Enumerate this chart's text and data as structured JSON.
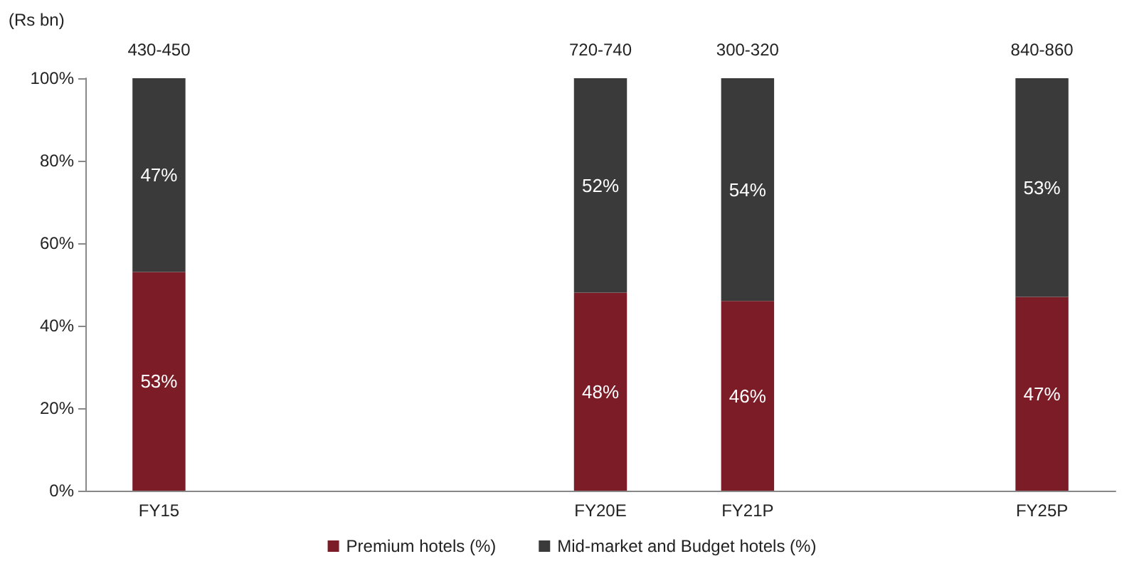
{
  "chart_data": {
    "type": "bar",
    "stacked": true,
    "ylabel": "(Rs bn)",
    "categories": [
      "FY15",
      null,
      null,
      "FY20E",
      "FY21P",
      null,
      "FY25P"
    ],
    "series": [
      {
        "name": "Premium hotels (%)",
        "color": "#7b1c27",
        "values": [
          53,
          null,
          null,
          48,
          46,
          null,
          47
        ],
        "value_labels": [
          "53%",
          null,
          null,
          "48%",
          "46%",
          null,
          "47%"
        ]
      },
      {
        "name": "Mid-market and Budget hotels (%)",
        "color": "#3a3a3a",
        "values": [
          47,
          null,
          null,
          52,
          54,
          null,
          53
        ],
        "value_labels": [
          "47%",
          null,
          null,
          "52%",
          "54%",
          null,
          "53%"
        ]
      }
    ],
    "totals": [
      "430-450",
      null,
      null,
      "720-740",
      "300-320",
      null,
      "840-860"
    ],
    "ylim": [
      0,
      100
    ],
    "yticks": [
      {
        "value": 0,
        "label": "0%"
      },
      {
        "value": 20,
        "label": "20%"
      },
      {
        "value": 40,
        "label": "40%"
      },
      {
        "value": 60,
        "label": "60%"
      },
      {
        "value": 80,
        "label": "80%"
      },
      {
        "value": 100,
        "label": "100%"
      }
    ],
    "grid": false,
    "legend": "bottom"
  }
}
